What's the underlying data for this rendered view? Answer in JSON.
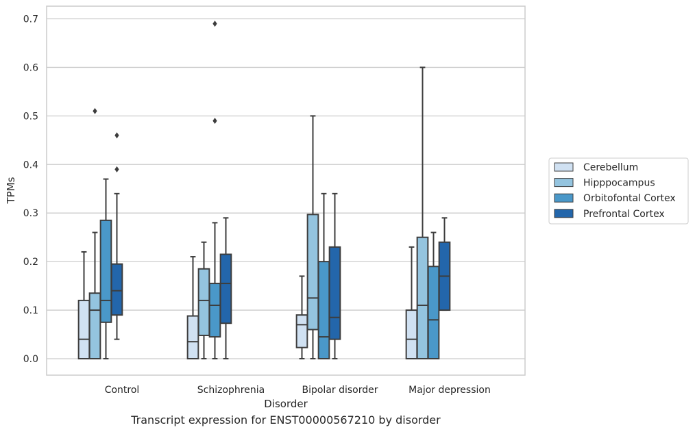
{
  "chart_data": {
    "type": "box",
    "caption": "Transcript expression for ENST00000567210 by disorder",
    "xlabel": "Disorder",
    "ylabel": "TPMs",
    "ylim": [
      -0.034,
      0.726
    ],
    "yticks": [
      0.0,
      0.1,
      0.2,
      0.3,
      0.4,
      0.5,
      0.6,
      0.7
    ],
    "ytick_labels": [
      "0.0",
      "0.1",
      "0.2",
      "0.3",
      "0.4",
      "0.5",
      "0.6",
      "0.7"
    ],
    "grid": true,
    "legend_position": "right",
    "categories": [
      "Control",
      "Schizophrenia",
      "Bipolar disorder",
      "Major depression"
    ],
    "series": [
      {
        "name": "Cerebellum",
        "color": "#d0e1f2",
        "boxes": [
          {
            "whislo": 0.0,
            "q1": 0.0,
            "med": 0.04,
            "q3": 0.12,
            "whishi": 0.22,
            "fliers": []
          },
          {
            "whislo": 0.0,
            "q1": 0.0,
            "med": 0.035,
            "q3": 0.088,
            "whishi": 0.21,
            "fliers": []
          },
          {
            "whislo": 0.0,
            "q1": 0.023,
            "med": 0.07,
            "q3": 0.09,
            "whishi": 0.17,
            "fliers": []
          },
          {
            "whislo": 0.0,
            "q1": 0.0,
            "med": 0.04,
            "q3": 0.1,
            "whishi": 0.23,
            "fliers": []
          }
        ]
      },
      {
        "name": "Hipppocampus",
        "color": "#94c4df",
        "boxes": [
          {
            "whislo": 0.0,
            "q1": 0.0,
            "med": 0.1,
            "q3": 0.135,
            "whishi": 0.26,
            "fliers": [
              0.51
            ]
          },
          {
            "whislo": 0.0,
            "q1": 0.048,
            "med": 0.12,
            "q3": 0.185,
            "whishi": 0.24,
            "fliers": []
          },
          {
            "whislo": 0.0,
            "q1": 0.06,
            "med": 0.125,
            "q3": 0.297,
            "whishi": 0.5,
            "fliers": []
          },
          {
            "whislo": 0.0,
            "q1": 0.0,
            "med": 0.11,
            "q3": 0.25,
            "whishi": 0.6,
            "fliers": []
          }
        ]
      },
      {
        "name": "Orbitofontal Cortex",
        "color": "#4a98c9",
        "boxes": [
          {
            "whislo": 0.0,
            "q1": 0.075,
            "med": 0.12,
            "q3": 0.285,
            "whishi": 0.37,
            "fliers": []
          },
          {
            "whislo": 0.0,
            "q1": 0.045,
            "med": 0.11,
            "q3": 0.155,
            "whishi": 0.28,
            "fliers": [
              0.69,
              0.49
            ]
          },
          {
            "whislo": 0.0,
            "q1": 0.0,
            "med": 0.045,
            "q3": 0.2,
            "whishi": 0.34,
            "fliers": []
          },
          {
            "whislo": 0.0,
            "q1": 0.0,
            "med": 0.08,
            "q3": 0.19,
            "whishi": 0.26,
            "fliers": []
          }
        ]
      },
      {
        "name": "Prefrontal Cortex",
        "color": "#2366ab",
        "boxes": [
          {
            "whislo": 0.04,
            "q1": 0.09,
            "med": 0.14,
            "q3": 0.195,
            "whishi": 0.34,
            "fliers": [
              0.46,
              0.39
            ]
          },
          {
            "whislo": 0.0,
            "q1": 0.073,
            "med": 0.155,
            "q3": 0.215,
            "whishi": 0.29,
            "fliers": []
          },
          {
            "whislo": 0.0,
            "q1": 0.04,
            "med": 0.085,
            "q3": 0.23,
            "whishi": 0.34,
            "fliers": []
          },
          {
            "whislo": 0.1,
            "q1": 0.1,
            "med": 0.17,
            "q3": 0.24,
            "whishi": 0.29,
            "fliers": []
          }
        ]
      }
    ]
  }
}
